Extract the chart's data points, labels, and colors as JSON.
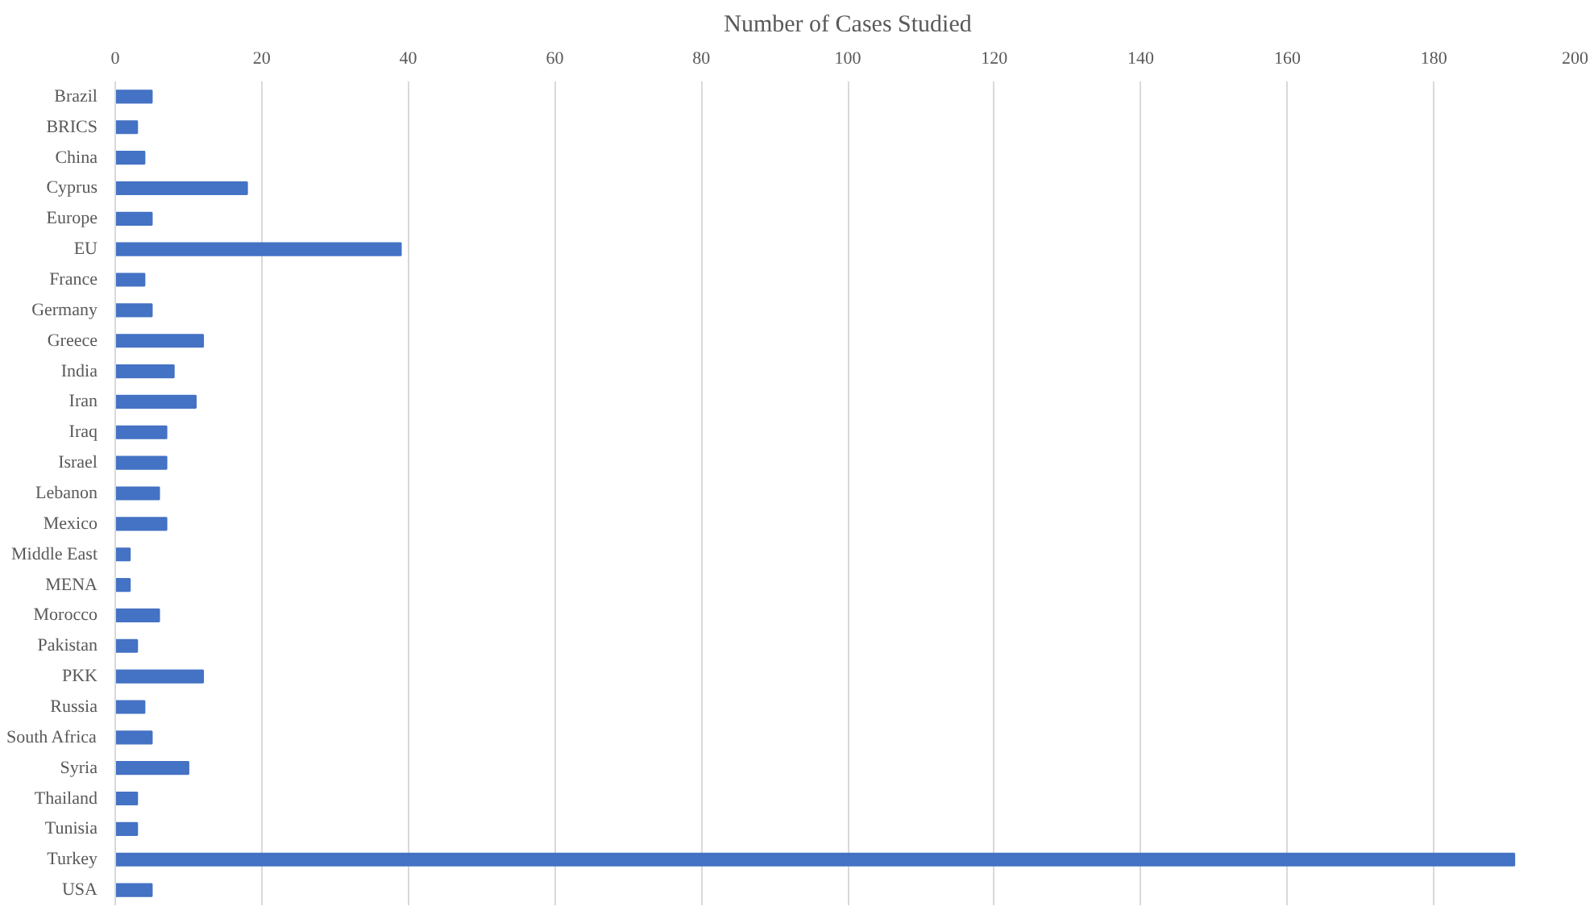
{
  "chart_data": {
    "type": "bar",
    "orientation": "horizontal",
    "title": "Number of Cases Studied",
    "categories": [
      "Brazil",
      "BRICS",
      "China",
      "Cyprus",
      "Europe",
      "EU",
      "France",
      "Germany",
      "Greece",
      "India",
      "Iran",
      "Iraq",
      "Israel",
      "Lebanon",
      "Mexico",
      "Middle East",
      "MENA",
      "Morocco",
      "Pakistan",
      "PKK",
      "Russia",
      "South Africa",
      "Syria",
      "Thailand",
      "Tunisia",
      "Turkey",
      "USA"
    ],
    "values": [
      5,
      3,
      4,
      18,
      5,
      39,
      4,
      5,
      12,
      8,
      11,
      7,
      7,
      6,
      7,
      2,
      2,
      6,
      3,
      12,
      4,
      5,
      10,
      3,
      3,
      191,
      5
    ],
    "color": "#4472c4",
    "xlim": [
      0,
      200
    ],
    "xticks": [
      0,
      20,
      40,
      60,
      80,
      100,
      120,
      140,
      160,
      180,
      200
    ],
    "grid": "x"
  }
}
